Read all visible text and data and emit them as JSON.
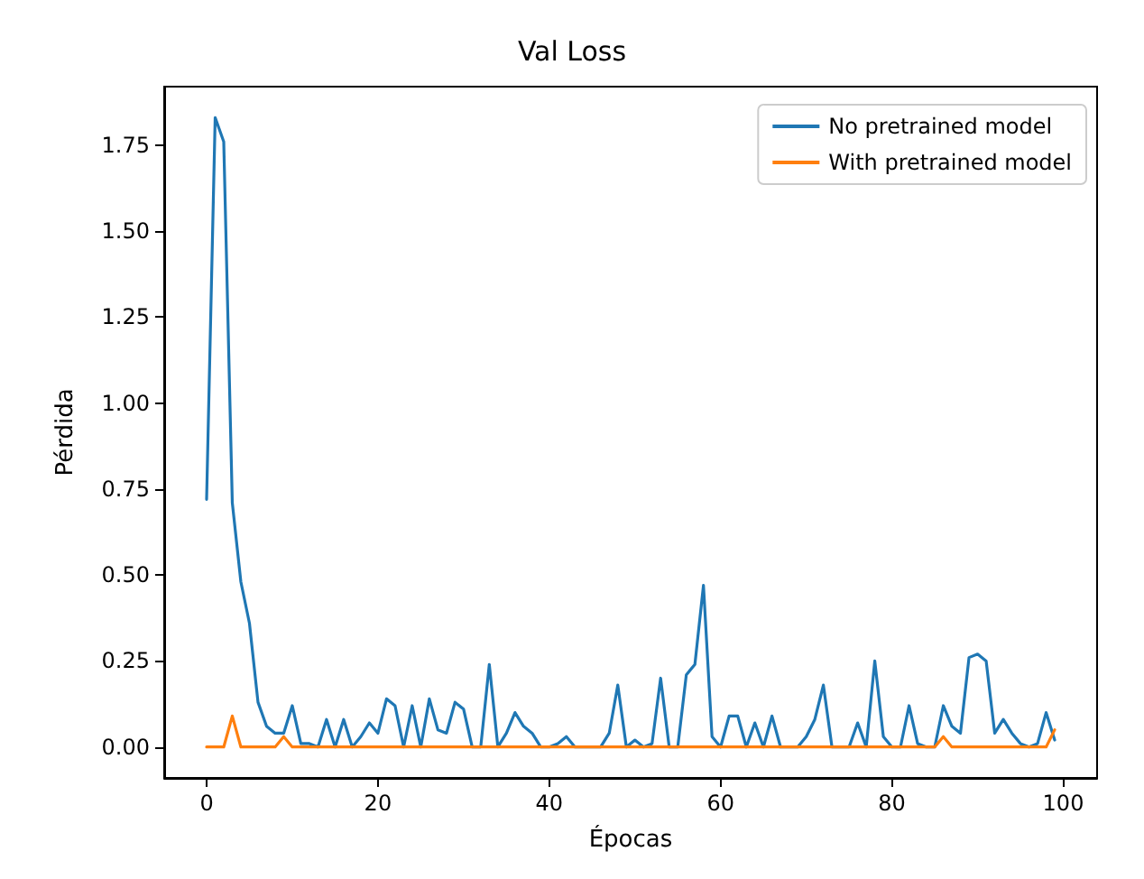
{
  "chart_data": {
    "type": "line",
    "title": "Val Loss",
    "xlabel": "Épocas",
    "ylabel": "Pérdida",
    "x": [
      0,
      1,
      2,
      3,
      4,
      5,
      6,
      7,
      8,
      9,
      10,
      11,
      12,
      13,
      14,
      15,
      16,
      17,
      18,
      19,
      20,
      21,
      22,
      23,
      24,
      25,
      26,
      27,
      28,
      29,
      30,
      31,
      32,
      33,
      34,
      35,
      36,
      37,
      38,
      39,
      40,
      41,
      42,
      43,
      44,
      45,
      46,
      47,
      48,
      49,
      50,
      51,
      52,
      53,
      54,
      55,
      56,
      57,
      58,
      59,
      60,
      61,
      62,
      63,
      64,
      65,
      66,
      67,
      68,
      69,
      70,
      71,
      72,
      73,
      74,
      75,
      76,
      77,
      78,
      79,
      80,
      81,
      82,
      83,
      84,
      85,
      86,
      87,
      88,
      89,
      90,
      91,
      92,
      93,
      94,
      95,
      96,
      97,
      98,
      99
    ],
    "series": [
      {
        "name": "No pretrained model",
        "color": "#1f77b4",
        "values": [
          0.72,
          1.83,
          1.76,
          0.71,
          0.48,
          0.36,
          0.13,
          0.06,
          0.04,
          0.04,
          0.12,
          0.01,
          0.01,
          0,
          0.08,
          0,
          0.08,
          0,
          0.03,
          0.07,
          0.04,
          0.14,
          0.12,
          0,
          0.12,
          0,
          0.14,
          0.05,
          0.04,
          0.13,
          0.11,
          0,
          0,
          0.24,
          0,
          0.04,
          0.1,
          0.06,
          0.04,
          0,
          0,
          0.01,
          0.03,
          0,
          0,
          0,
          0,
          0.04,
          0.18,
          0,
          0.02,
          0,
          0.01,
          0.2,
          0,
          0,
          0.21,
          0.24,
          0.47,
          0.03,
          0,
          0.09,
          0.09,
          0,
          0.07,
          0,
          0.09,
          0,
          0,
          0,
          0.03,
          0.08,
          0.18,
          0,
          0,
          0,
          0.07,
          0,
          0.25,
          0.03,
          0,
          0,
          0.12,
          0.01,
          0,
          0,
          0.12,
          0.06,
          0.04,
          0.26,
          0.27,
          0.25,
          0.04,
          0.08,
          0.04,
          0.01,
          0,
          0.01,
          0.1,
          0.02
        ]
      },
      {
        "name": "With pretrained model",
        "color": "#ff7f0e",
        "values": [
          0,
          0,
          0,
          0.09,
          0,
          0,
          0,
          0,
          0,
          0.03,
          0,
          0,
          0,
          0,
          0,
          0,
          0,
          0,
          0,
          0,
          0,
          0,
          0,
          0,
          0,
          0,
          0,
          0,
          0,
          0,
          0,
          0,
          0,
          0,
          0,
          0,
          0,
          0,
          0,
          0,
          0,
          0,
          0,
          0,
          0,
          0,
          0,
          0,
          0,
          0,
          0,
          0,
          0,
          0,
          0,
          0,
          0,
          0,
          0,
          0,
          0,
          0,
          0,
          0,
          0,
          0,
          0,
          0,
          0,
          0,
          0,
          0,
          0,
          0,
          0,
          0,
          0,
          0,
          0,
          0,
          0,
          0,
          0,
          0,
          0,
          0,
          0.03,
          0,
          0,
          0,
          0,
          0,
          0,
          0,
          0,
          0,
          0,
          0,
          0,
          0.05
        ]
      }
    ],
    "xlim": [
      -4.95,
      103.95
    ],
    "xticks": [
      0,
      20,
      40,
      60,
      80,
      100
    ],
    "ylim": [
      -0.09,
      1.92
    ],
    "yticks": [
      {
        "value": 0,
        "label": "0.00"
      },
      {
        "value": 0.25,
        "label": "0.25"
      },
      {
        "value": 0.5,
        "label": "0.50"
      },
      {
        "value": 0.75,
        "label": "0.75"
      },
      {
        "value": 1,
        "label": "1.00"
      },
      {
        "value": 1.25,
        "label": "1.25"
      },
      {
        "value": 1.5,
        "label": "1.50"
      },
      {
        "value": 1.75,
        "label": "1.75"
      }
    ],
    "legend": "top right",
    "grid": false,
    "marker": "none",
    "line_style": "solid"
  }
}
